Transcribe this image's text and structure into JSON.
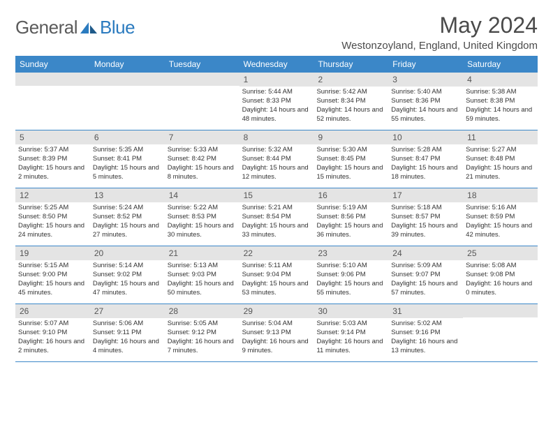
{
  "brand": {
    "part1": "General",
    "part2": "Blue"
  },
  "title": "May 2024",
  "location": "Westonzoyland, England, United Kingdom",
  "day_names": [
    "Sunday",
    "Monday",
    "Tuesday",
    "Wednesday",
    "Thursday",
    "Friday",
    "Saturday"
  ],
  "colors": {
    "header_bg": "#3b87c8",
    "daynum_bg": "#e4e4e4",
    "text": "#323232"
  },
  "weeks": [
    [
      null,
      null,
      null,
      {
        "n": "1",
        "sr": "5:44 AM",
        "ss": "8:33 PM",
        "dl": "14 hours and 48 minutes."
      },
      {
        "n": "2",
        "sr": "5:42 AM",
        "ss": "8:34 PM",
        "dl": "14 hours and 52 minutes."
      },
      {
        "n": "3",
        "sr": "5:40 AM",
        "ss": "8:36 PM",
        "dl": "14 hours and 55 minutes."
      },
      {
        "n": "4",
        "sr": "5:38 AM",
        "ss": "8:38 PM",
        "dl": "14 hours and 59 minutes."
      }
    ],
    [
      {
        "n": "5",
        "sr": "5:37 AM",
        "ss": "8:39 PM",
        "dl": "15 hours and 2 minutes."
      },
      {
        "n": "6",
        "sr": "5:35 AM",
        "ss": "8:41 PM",
        "dl": "15 hours and 5 minutes."
      },
      {
        "n": "7",
        "sr": "5:33 AM",
        "ss": "8:42 PM",
        "dl": "15 hours and 8 minutes."
      },
      {
        "n": "8",
        "sr": "5:32 AM",
        "ss": "8:44 PM",
        "dl": "15 hours and 12 minutes."
      },
      {
        "n": "9",
        "sr": "5:30 AM",
        "ss": "8:45 PM",
        "dl": "15 hours and 15 minutes."
      },
      {
        "n": "10",
        "sr": "5:28 AM",
        "ss": "8:47 PM",
        "dl": "15 hours and 18 minutes."
      },
      {
        "n": "11",
        "sr": "5:27 AM",
        "ss": "8:48 PM",
        "dl": "15 hours and 21 minutes."
      }
    ],
    [
      {
        "n": "12",
        "sr": "5:25 AM",
        "ss": "8:50 PM",
        "dl": "15 hours and 24 minutes."
      },
      {
        "n": "13",
        "sr": "5:24 AM",
        "ss": "8:52 PM",
        "dl": "15 hours and 27 minutes."
      },
      {
        "n": "14",
        "sr": "5:22 AM",
        "ss": "8:53 PM",
        "dl": "15 hours and 30 minutes."
      },
      {
        "n": "15",
        "sr": "5:21 AM",
        "ss": "8:54 PM",
        "dl": "15 hours and 33 minutes."
      },
      {
        "n": "16",
        "sr": "5:19 AM",
        "ss": "8:56 PM",
        "dl": "15 hours and 36 minutes."
      },
      {
        "n": "17",
        "sr": "5:18 AM",
        "ss": "8:57 PM",
        "dl": "15 hours and 39 minutes."
      },
      {
        "n": "18",
        "sr": "5:16 AM",
        "ss": "8:59 PM",
        "dl": "15 hours and 42 minutes."
      }
    ],
    [
      {
        "n": "19",
        "sr": "5:15 AM",
        "ss": "9:00 PM",
        "dl": "15 hours and 45 minutes."
      },
      {
        "n": "20",
        "sr": "5:14 AM",
        "ss": "9:02 PM",
        "dl": "15 hours and 47 minutes."
      },
      {
        "n": "21",
        "sr": "5:13 AM",
        "ss": "9:03 PM",
        "dl": "15 hours and 50 minutes."
      },
      {
        "n": "22",
        "sr": "5:11 AM",
        "ss": "9:04 PM",
        "dl": "15 hours and 53 minutes."
      },
      {
        "n": "23",
        "sr": "5:10 AM",
        "ss": "9:06 PM",
        "dl": "15 hours and 55 minutes."
      },
      {
        "n": "24",
        "sr": "5:09 AM",
        "ss": "9:07 PM",
        "dl": "15 hours and 57 minutes."
      },
      {
        "n": "25",
        "sr": "5:08 AM",
        "ss": "9:08 PM",
        "dl": "16 hours and 0 minutes."
      }
    ],
    [
      {
        "n": "26",
        "sr": "5:07 AM",
        "ss": "9:10 PM",
        "dl": "16 hours and 2 minutes."
      },
      {
        "n": "27",
        "sr": "5:06 AM",
        "ss": "9:11 PM",
        "dl": "16 hours and 4 minutes."
      },
      {
        "n": "28",
        "sr": "5:05 AM",
        "ss": "9:12 PM",
        "dl": "16 hours and 7 minutes."
      },
      {
        "n": "29",
        "sr": "5:04 AM",
        "ss": "9:13 PM",
        "dl": "16 hours and 9 minutes."
      },
      {
        "n": "30",
        "sr": "5:03 AM",
        "ss": "9:14 PM",
        "dl": "16 hours and 11 minutes."
      },
      {
        "n": "31",
        "sr": "5:02 AM",
        "ss": "9:16 PM",
        "dl": "16 hours and 13 minutes."
      },
      null
    ]
  ],
  "labels": {
    "sunrise": "Sunrise:",
    "sunset": "Sunset:",
    "daylight": "Daylight:"
  }
}
